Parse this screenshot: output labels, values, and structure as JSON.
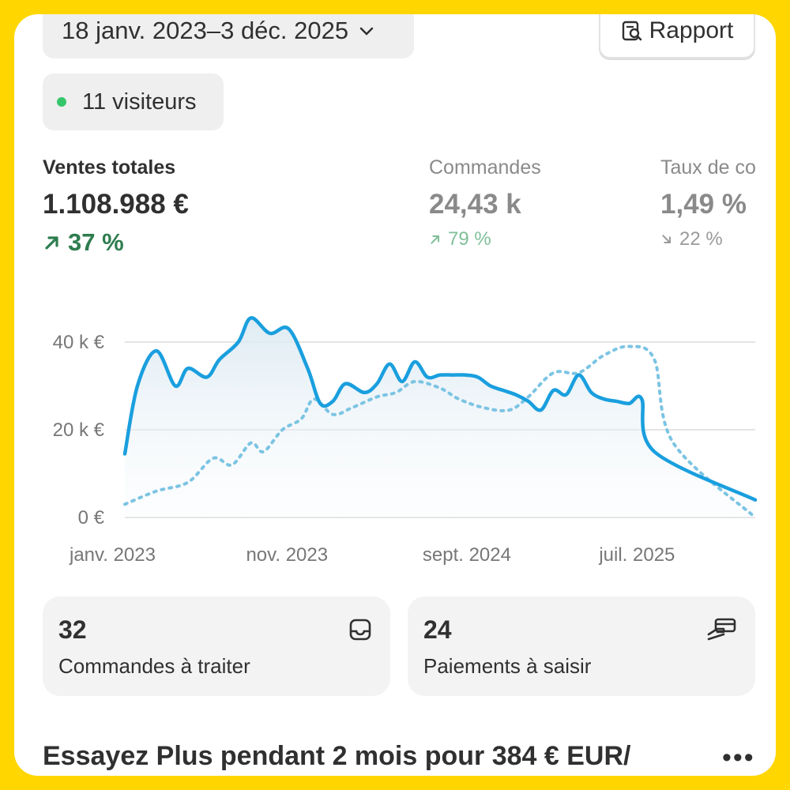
{
  "header": {
    "date_range": "18 janv. 2023–3 déc. 2025",
    "report_label": "Rapport",
    "visitors": "11 visiteurs"
  },
  "metrics": [
    {
      "label": "Ventes totales",
      "value": "1.108.988 €",
      "trend": "37 %",
      "trend_dir": "up"
    },
    {
      "label": "Commandes",
      "value": "24,43 k",
      "trend": "79 %",
      "trend_dir": "up"
    },
    {
      "label": "Taux de co",
      "value": "1,49 %",
      "trend": "22 %",
      "trend_dir": "down"
    }
  ],
  "chart_data": {
    "type": "line",
    "y_ticks": [
      "40 k €",
      "20 k €",
      "0 €"
    ],
    "x_ticks": [
      "janv. 2023",
      "nov. 2023",
      "sept. 2024",
      "juil. 2025"
    ],
    "ylim": [
      0,
      40000
    ],
    "grid": true,
    "series": [
      {
        "style": "solid",
        "color": "#1a9fde",
        "x": [
          0,
          0.02,
          0.05,
          0.08,
          0.1,
          0.13,
          0.15,
          0.18,
          0.2,
          0.23,
          0.26,
          0.29,
          0.31,
          0.33,
          0.35,
          0.38,
          0.4,
          0.42,
          0.44,
          0.46,
          0.48,
          0.5,
          0.52,
          0.54,
          0.56,
          0.58,
          0.6,
          0.62,
          0.64,
          0.66,
          0.68,
          0.7,
          0.72,
          0.74,
          0.76,
          0.78,
          0.8,
          0.82,
          0.84,
          0.86,
          0.88,
          0.9,
          0.92,
          0.94,
          0.96,
          0.975,
          0.985,
          1.0
        ],
        "values": [
          14500,
          30000,
          38000,
          30000,
          34000,
          32000,
          36000,
          40000,
          45500,
          42000,
          43000,
          34000,
          26000,
          26500,
          30500,
          28500,
          30500,
          35000,
          31000,
          35500,
          32000,
          32500,
          32500,
          32500,
          32000,
          30000,
          29000,
          28000,
          26500,
          24500,
          29000,
          28000,
          32500,
          28500,
          27000,
          26500,
          26000,
          27000,
          15000,
          4000,
          4000,
          4000,
          4000,
          4000,
          4000,
          4000,
          4000,
          4000
        ]
      },
      {
        "style": "dotted",
        "color": "#7cc4e3",
        "x": [
          0,
          0.05,
          0.1,
          0.14,
          0.17,
          0.2,
          0.22,
          0.25,
          0.28,
          0.3,
          0.33,
          0.36,
          0.4,
          0.43,
          0.46,
          0.5,
          0.53,
          0.57,
          0.61,
          0.64,
          0.68,
          0.72,
          0.76,
          0.8,
          0.84,
          0.87,
          0.9,
          0.93,
          0.97,
          1.0
        ],
        "values": [
          3000,
          6000,
          8000,
          13500,
          12000,
          17000,
          15000,
          20000,
          22500,
          27000,
          23500,
          25000,
          27500,
          28500,
          31000,
          29500,
          27000,
          25000,
          24500,
          27500,
          33000,
          33000,
          37000,
          39000,
          36000,
          17000,
          0,
          0,
          0,
          0
        ]
      }
    ]
  },
  "cards": [
    {
      "count": "32",
      "label": "Commandes à traiter",
      "icon": "inbox-icon"
    },
    {
      "count": "24",
      "label": "Paiements à saisir",
      "icon": "payment-hand-icon"
    }
  ],
  "promo": {
    "text": "Essayez Plus pendant 2 mois pour 384 € EUR/",
    "more_label": "•••"
  },
  "colors": {
    "frame": "#FFD600",
    "positive": "#2e7d4f",
    "live_dot": "#35c66b",
    "line_primary": "#1a9fde",
    "line_secondary": "#7cc4e3"
  }
}
